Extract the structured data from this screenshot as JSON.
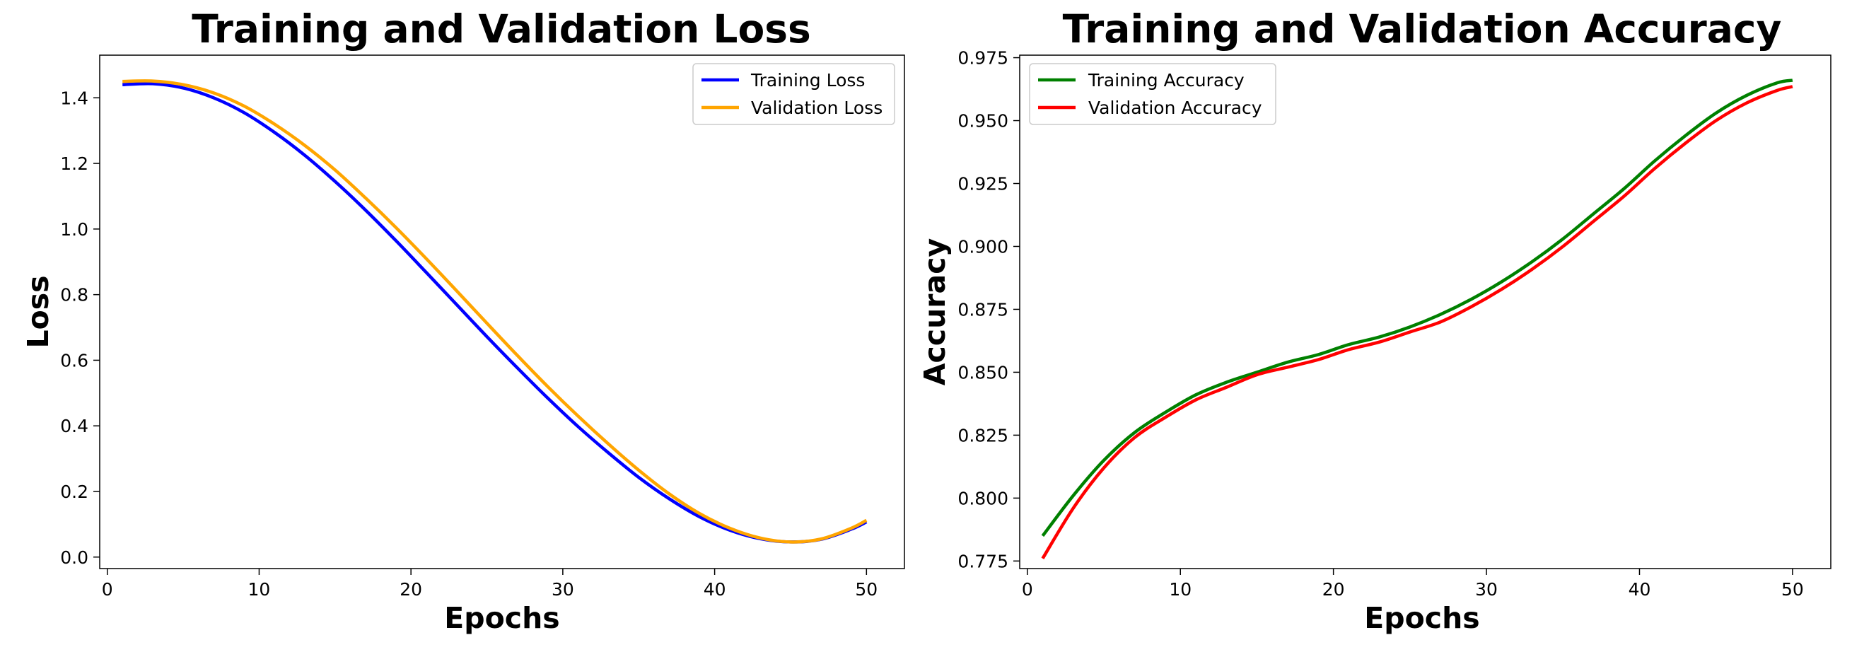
{
  "chart_data": [
    {
      "id": "loss",
      "type": "line",
      "title": "Training and Validation Loss",
      "xlabel": "Epochs",
      "ylabel": "Loss",
      "xlim": [
        -0.5,
        52.5
      ],
      "ylim": [
        -0.035,
        1.53
      ],
      "xticks": [
        0,
        10,
        20,
        30,
        40,
        50
      ],
      "yticks": [
        0.0,
        0.2,
        0.4,
        0.6,
        0.8,
        1.0,
        1.2,
        1.4
      ],
      "ytick_decimals": 1,
      "legend_position": "upper right",
      "x": [
        1,
        3,
        5,
        7,
        9,
        11,
        13,
        15,
        17,
        19,
        21,
        23,
        25,
        27,
        29,
        31,
        33,
        35,
        37,
        39,
        41,
        43,
        45,
        47,
        49,
        50
      ],
      "series": [
        {
          "name": "Training Loss",
          "color": "#0000ff",
          "values": [
            1.44,
            1.443,
            1.43,
            1.4,
            1.355,
            1.295,
            1.225,
            1.145,
            1.058,
            0.965,
            0.868,
            0.77,
            0.672,
            0.577,
            0.485,
            0.398,
            0.318,
            0.243,
            0.178,
            0.123,
            0.082,
            0.056,
            0.046,
            0.054,
            0.085,
            0.107
          ]
        },
        {
          "name": "Validation Loss",
          "color": "#ffa500",
          "values": [
            1.45,
            1.451,
            1.44,
            1.415,
            1.375,
            1.32,
            1.255,
            1.18,
            1.095,
            1.005,
            0.91,
            0.812,
            0.713,
            0.615,
            0.52,
            0.43,
            0.345,
            0.265,
            0.193,
            0.133,
            0.088,
            0.058,
            0.046,
            0.055,
            0.088,
            0.112
          ]
        }
      ]
    },
    {
      "id": "acc",
      "type": "line",
      "title": "Training and Validation Accuracy",
      "xlabel": "Epochs",
      "ylabel": "Accuracy",
      "xlim": [
        -0.5,
        52.5
      ],
      "ylim": [
        0.772,
        0.976
      ],
      "xticks": [
        0,
        10,
        20,
        30,
        40,
        50
      ],
      "yticks": [
        0.775,
        0.8,
        0.825,
        0.85,
        0.875,
        0.9,
        0.925,
        0.95,
        0.975
      ],
      "ytick_decimals": 3,
      "legend_position": "upper left",
      "x": [
        1,
        3,
        5,
        7,
        9,
        11,
        13,
        15,
        17,
        19,
        21,
        23,
        25,
        27,
        29,
        31,
        33,
        35,
        37,
        39,
        41,
        43,
        45,
        47,
        49,
        50
      ],
      "series": [
        {
          "name": "Training Accuracy",
          "color": "#008000",
          "values": [
            0.785,
            0.801,
            0.815,
            0.826,
            0.834,
            0.841,
            0.846,
            0.85,
            0.854,
            0.857,
            0.861,
            0.864,
            0.868,
            0.873,
            0.879,
            0.886,
            0.894,
            0.903,
            0.913,
            0.923,
            0.934,
            0.944,
            0.953,
            0.96,
            0.965,
            0.966
          ]
        },
        {
          "name": "Validation Accuracy",
          "color": "#ff0000",
          "values": [
            0.776,
            0.796,
            0.812,
            0.824,
            0.832,
            0.839,
            0.844,
            0.849,
            0.852,
            0.855,
            0.859,
            0.862,
            0.866,
            0.87,
            0.876,
            0.883,
            0.891,
            0.9,
            0.91,
            0.92,
            0.931,
            0.941,
            0.95,
            0.957,
            0.962,
            0.9635
          ]
        }
      ]
    }
  ]
}
